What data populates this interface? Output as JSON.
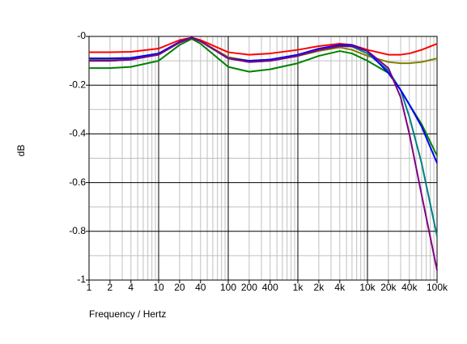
{
  "chart_data": {
    "type": "line",
    "x_label": "Frequency / Hertz",
    "y_label": "dB",
    "x": [
      1,
      2,
      4,
      10,
      20,
      30,
      40,
      100,
      200,
      400,
      1000,
      2000,
      4000,
      6000,
      10000,
      20000,
      30000,
      40000,
      60000,
      100000
    ],
    "series": [
      {
        "color": "#ff0000",
        "values": [
          -0.065,
          -0.065,
          -0.063,
          -0.05,
          -0.015,
          -0.005,
          -0.015,
          -0.065,
          -0.075,
          -0.07,
          -0.055,
          -0.04,
          -0.03,
          -0.035,
          -0.055,
          -0.075,
          -0.075,
          -0.07,
          -0.055,
          -0.03
        ]
      },
      {
        "color": "#808000",
        "values": [
          -0.095,
          -0.095,
          -0.09,
          -0.07,
          -0.025,
          -0.005,
          -0.02,
          -0.085,
          -0.1,
          -0.095,
          -0.08,
          -0.06,
          -0.045,
          -0.055,
          -0.08,
          -0.105,
          -0.11,
          -0.11,
          -0.105,
          -0.09
        ]
      },
      {
        "color": "#008000",
        "values": [
          -0.13,
          -0.13,
          -0.125,
          -0.1,
          -0.035,
          -0.01,
          -0.03,
          -0.125,
          -0.145,
          -0.135,
          -0.11,
          -0.08,
          -0.06,
          -0.07,
          -0.1,
          -0.15,
          -0.22,
          -0.28,
          -0.36,
          -0.49
        ]
      },
      {
        "color": "#008080",
        "values": [
          -0.1,
          -0.1,
          -0.095,
          -0.075,
          -0.025,
          -0.005,
          -0.02,
          -0.09,
          -0.105,
          -0.1,
          -0.08,
          -0.055,
          -0.04,
          -0.042,
          -0.07,
          -0.14,
          -0.22,
          -0.33,
          -0.52,
          -0.82
        ]
      },
      {
        "color": "#0000ff",
        "values": [
          -0.09,
          -0.09,
          -0.088,
          -0.07,
          -0.022,
          -0.005,
          -0.02,
          -0.09,
          -0.1,
          -0.095,
          -0.075,
          -0.05,
          -0.035,
          -0.035,
          -0.06,
          -0.15,
          -0.22,
          -0.28,
          -0.37,
          -0.52
        ]
      },
      {
        "color": "#800080",
        "values": [
          -0.1,
          -0.1,
          -0.095,
          -0.075,
          -0.025,
          -0.005,
          -0.02,
          -0.09,
          -0.105,
          -0.1,
          -0.08,
          -0.055,
          -0.04,
          -0.04,
          -0.06,
          -0.13,
          -0.25,
          -0.4,
          -0.65,
          -0.96
        ]
      }
    ],
    "xscale": "log",
    "xlim": [
      1,
      100000
    ],
    "xticks": [
      1,
      2,
      4,
      10,
      20,
      40,
      100,
      200,
      400,
      {
        "value": 1000,
        "label": "1k"
      },
      {
        "value": 2000,
        "label": "2k"
      },
      {
        "value": 4000,
        "label": "4k"
      },
      {
        "value": 10000,
        "label": "10k"
      },
      {
        "value": 20000,
        "label": "20k"
      },
      {
        "value": 40000,
        "label": "40k"
      },
      {
        "value": 100000,
        "label": "100k"
      }
    ],
    "ylim": [
      -1,
      0
    ],
    "yticks": [
      {
        "value": 0,
        "label": "-0"
      },
      -0.2,
      -0.4,
      -0.6,
      -0.8,
      -1
    ],
    "grid": true,
    "minor_grid": true
  }
}
